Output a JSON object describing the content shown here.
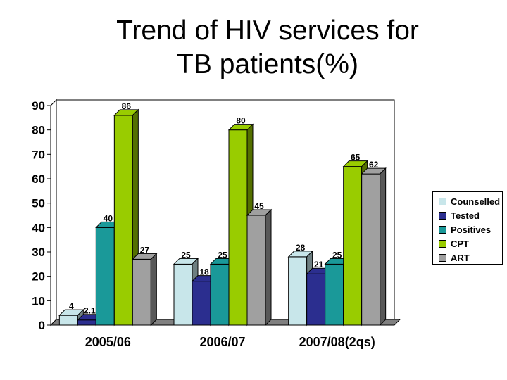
{
  "title_line1": "Trend of HIV services for",
  "title_line2": "TB patients(%)",
  "chart_data": {
    "type": "bar",
    "title": "Trend of HIV services for TB patients(%)",
    "categories": [
      "2005/06",
      "2006/07",
      "2007/08(2qs)"
    ],
    "series": [
      {
        "name": "Counselled",
        "values": [
          4,
          25,
          28
        ],
        "labels": [
          "4",
          "25",
          "28"
        ],
        "color": "#c8e6ea"
      },
      {
        "name": "Tested",
        "values": [
          2.1,
          18,
          21
        ],
        "labels": [
          "2.1",
          "18",
          "21"
        ],
        "color": "#2b2e8f"
      },
      {
        "name": "Positives",
        "values": [
          40,
          25,
          25
        ],
        "labels": [
          "40",
          "25",
          "25"
        ],
        "color": "#1a9999"
      },
      {
        "name": "CPT",
        "values": [
          86,
          80,
          65
        ],
        "labels": [
          "86",
          "80",
          "65"
        ],
        "color": "#99cc00"
      },
      {
        "name": "ART",
        "values": [
          27,
          45,
          62
        ],
        "labels": [
          "27",
          "45",
          "62"
        ],
        "color": "#a0a0a0"
      }
    ],
    "ylim": [
      0,
      90
    ],
    "yticks": [
      0,
      10,
      20,
      30,
      40,
      50,
      60,
      70,
      80,
      90
    ],
    "xlabel": "",
    "ylabel": "",
    "grid": false,
    "legend": "right"
  }
}
